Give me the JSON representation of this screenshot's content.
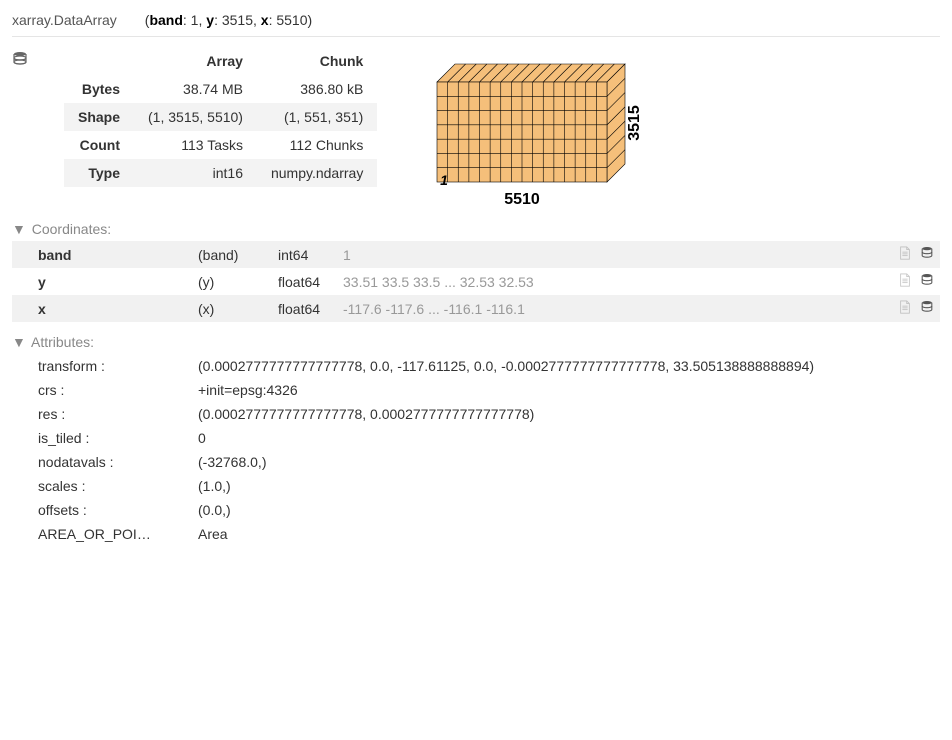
{
  "header": {
    "obj_type": "xarray.DataArray",
    "dims_display_html": "(<b>band</b>: 1, <b>y</b>: 3515, <b>x</b>: 5510)"
  },
  "dask_table": {
    "col_array_label": "Array",
    "col_chunk_label": "Chunk",
    "rows": [
      {
        "label": "Bytes",
        "array": "38.74 MB",
        "chunk": "386.80 kB"
      },
      {
        "label": "Shape",
        "array": "(1, 3515, 5510)",
        "chunk": "(1, 551, 351)"
      },
      {
        "label": "Count",
        "array": "113 Tasks",
        "chunk": "112 Chunks"
      },
      {
        "label": "Type",
        "array": "int16",
        "chunk": "numpy.ndarray"
      }
    ]
  },
  "cube": {
    "labels": {
      "depth": "1",
      "width": "5510",
      "height": "3515"
    },
    "n_cols": 16,
    "n_rows": 7,
    "fill_color": "#f5bf7a",
    "stroke_color": "#000000",
    "stroke_width": 0.6
  },
  "sections": {
    "coordinates_title": "Coordinates:",
    "attributes_title": "Attributes:"
  },
  "coordinates": [
    {
      "name": "band",
      "bold": true,
      "dim": "(band)",
      "dtype": "int64",
      "preview": "1"
    },
    {
      "name": "y",
      "bold": true,
      "dim": "(y)",
      "dtype": "float64",
      "preview": "33.51 33.5 33.5 ... 32.53 32.53"
    },
    {
      "name": "x",
      "bold": true,
      "dim": "(x)",
      "dtype": "float64",
      "preview": "-117.6 -117.6 ... -116.1 -116.1"
    }
  ],
  "attributes": [
    {
      "key": "transform :",
      "val": "(0.0002777777777777778, 0.0, -117.61125, 0.0, -0.0002777777777777778, 33.505138888888894)"
    },
    {
      "key": "crs :",
      "val": "+init=epsg:4326"
    },
    {
      "key": "res :",
      "val": "(0.0002777777777777778, 0.0002777777777777778)"
    },
    {
      "key": "is_tiled :",
      "val": "0"
    },
    {
      "key": "nodatavals :",
      "val": "(-32768.0,)"
    },
    {
      "key": "scales :",
      "val": "(1.0,)"
    },
    {
      "key": "offsets :",
      "val": "(0.0,)"
    },
    {
      "key": "AREA_OR_POI…",
      "val": "Area"
    }
  ]
}
